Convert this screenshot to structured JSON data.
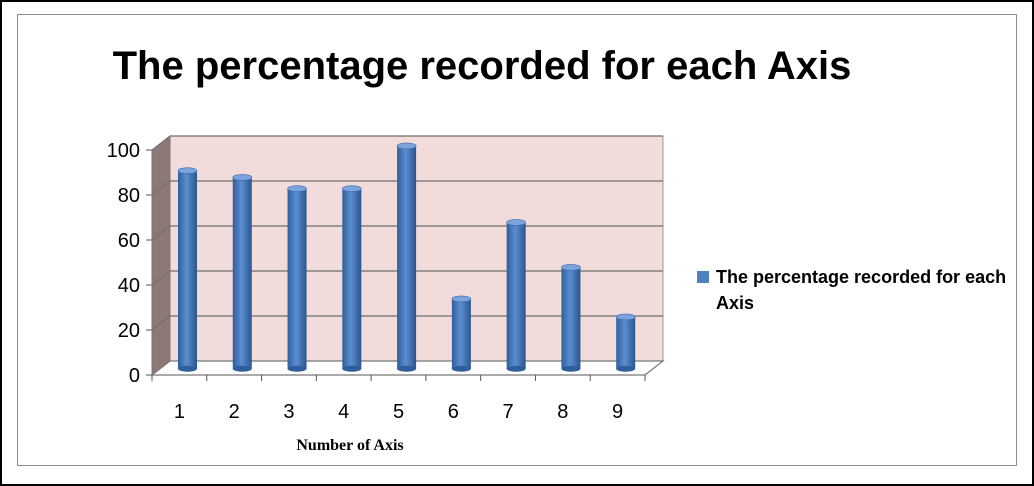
{
  "chart_data": {
    "type": "bar",
    "title": "The percentage recorded for each Axis",
    "xlabel": "Number of Axis",
    "ylabel": "",
    "categories": [
      "1",
      "2",
      "3",
      "4",
      "5",
      "6",
      "7",
      "8",
      "9"
    ],
    "series": [
      {
        "name": "The percentage recorded for each Axis",
        "values": [
          88,
          85,
          80,
          80,
          99,
          31,
          65,
          45,
          23
        ],
        "color": "#4f81bd"
      }
    ],
    "ylim": [
      0,
      100
    ],
    "yticks": [
      "0",
      "20",
      "40",
      "60",
      "80",
      "100"
    ],
    "grid": true,
    "legend_position": "right",
    "plot_background": "#f2dcdb"
  }
}
